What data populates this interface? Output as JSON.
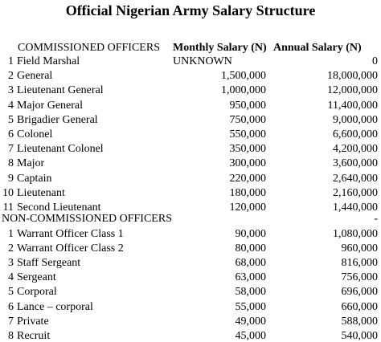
{
  "title": "Official Nigerian Army Salary Structure",
  "headers": [
    "COMMISSIONED OFFICERS",
    "Monthly Salary (N)",
    "Annual Salary (N)"
  ],
  "commissioned": {
    "rows": [
      [
        "1",
        "Field Marshal",
        "UNKNOWN",
        "0"
      ],
      [
        "2",
        "General",
        "1,500,000",
        "18,000,000"
      ],
      [
        "3",
        "Lieutenant General",
        "1,000,000",
        "12,000,000"
      ],
      [
        "4",
        "Major General",
        "950,000",
        "11,400,000"
      ],
      [
        "5",
        "Brigadier General",
        "750,000",
        "9,000,000"
      ],
      [
        "6",
        "Colonel",
        "550,000",
        "6,600,000"
      ],
      [
        "7",
        "Lieutenant Colonel",
        "350,000",
        "4,200,000"
      ],
      [
        "8",
        "Major",
        "300,000",
        "3,600,000"
      ],
      [
        "9",
        "Captain",
        "220,000",
        "2,640,000"
      ],
      [
        "10",
        "Lieutenant",
        "180,000",
        "2,160,000"
      ],
      [
        "11",
        "Second Lieutenant",
        "120,000",
        "1,440,000"
      ]
    ]
  },
  "non_commissioned": {
    "heading": "NON-COMMISSIONED OFFICERS",
    "annual": "-",
    "rows": [
      [
        "1",
        "Warrant Officer Class 1",
        "90,000",
        "1,080,000"
      ],
      [
        "2",
        "Warrant Officer Class 2",
        "80,000",
        "960,000"
      ],
      [
        "3",
        "Staff Sergeant",
        "68,000",
        "816,000"
      ],
      [
        "4",
        "Sergeant",
        "63,000",
        "756,000"
      ],
      [
        "5",
        "Corporal",
        "58,000",
        "696,000"
      ],
      [
        "6",
        "Lance – corporal",
        "55,000",
        "660,000"
      ],
      [
        "7",
        "Private",
        "49,000",
        "588,000"
      ],
      [
        "8",
        "Recruit",
        "45,000",
        "540,000"
      ]
    ]
  }
}
